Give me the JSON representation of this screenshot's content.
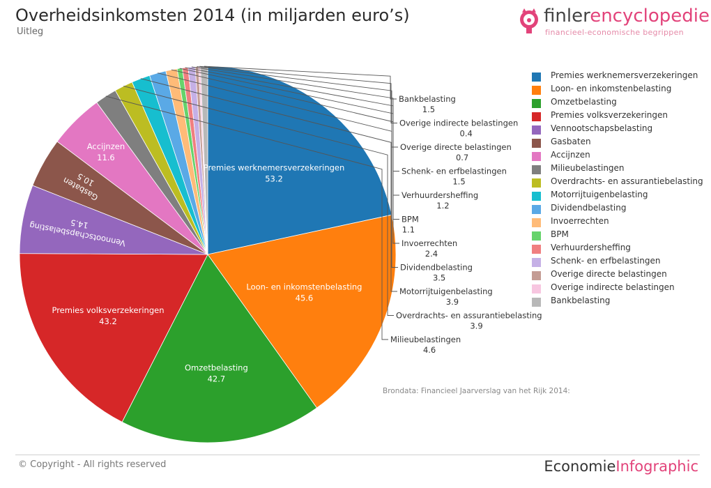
{
  "header": {
    "title": "Overheidsinkomsten 2014 (in miljarden euro’s)",
    "subtitle": "Uitleg"
  },
  "logo": {
    "part1": "finler",
    "part2": "encyclopedie",
    "tagline": "financieel-economische begrippen",
    "icon": "piggy-bank-icon"
  },
  "source": "Brondata: Financieel Jaarverslag van het Rijk 2014:",
  "footer": {
    "copyright": "© Copyright - All rights reserved",
    "brand_part1": "Economie",
    "brand_part2": "Infographic"
  },
  "colors": {
    "accent": "#e2437a"
  },
  "chart_data": {
    "type": "pie",
    "title": "Overheidsinkomsten 2014 (in miljarden euro’s)",
    "legend_position": "right",
    "slices": [
      {
        "label": "Premies werknemersverzekeringen",
        "value": 53.2,
        "color": "#1f77b4"
      },
      {
        "label": "Loon- en inkomstenbelasting",
        "value": 45.6,
        "color": "#ff7f0e"
      },
      {
        "label": "Omzetbelasting",
        "value": 42.7,
        "color": "#2ca02c"
      },
      {
        "label": "Premies volksverzekeringen",
        "value": 43.2,
        "color": "#d62728"
      },
      {
        "label": "Vennootschapsbelasting",
        "value": 14.5,
        "color": "#9467bd"
      },
      {
        "label": "Gasbaten",
        "value": 10.5,
        "color": "#8c564b"
      },
      {
        "label": "Accijnzen",
        "value": 11.6,
        "color": "#e377c2"
      },
      {
        "label": "Milieubelastingen",
        "value": 4.6,
        "color": "#7f7f7f"
      },
      {
        "label": "Overdrachts- en assurantiebelasting",
        "value": 3.9,
        "color": "#bcbd22"
      },
      {
        "label": "Motorrijtuigenbelasting",
        "value": 3.9,
        "color": "#17becf"
      },
      {
        "label": "Dividendbelasting",
        "value": 3.5,
        "color": "#5aa9e6"
      },
      {
        "label": "Invoerrechten",
        "value": 2.4,
        "color": "#ffbb78"
      },
      {
        "label": "BPM",
        "value": 1.1,
        "color": "#66d36b"
      },
      {
        "label": "Verhuurdersheffing",
        "value": 1.2,
        "color": "#f07f80"
      },
      {
        "label": "Schenk- en erfbelastingen",
        "value": 1.5,
        "color": "#c5b0e6"
      },
      {
        "label": "Overige directe belastingen",
        "value": 0.7,
        "color": "#c49c94"
      },
      {
        "label": "Overige indirecte belastingen",
        "value": 0.4,
        "color": "#f7c6e0"
      },
      {
        "label": "Bankbelasting",
        "value": 1.5,
        "color": "#b8b8b8"
      }
    ]
  }
}
